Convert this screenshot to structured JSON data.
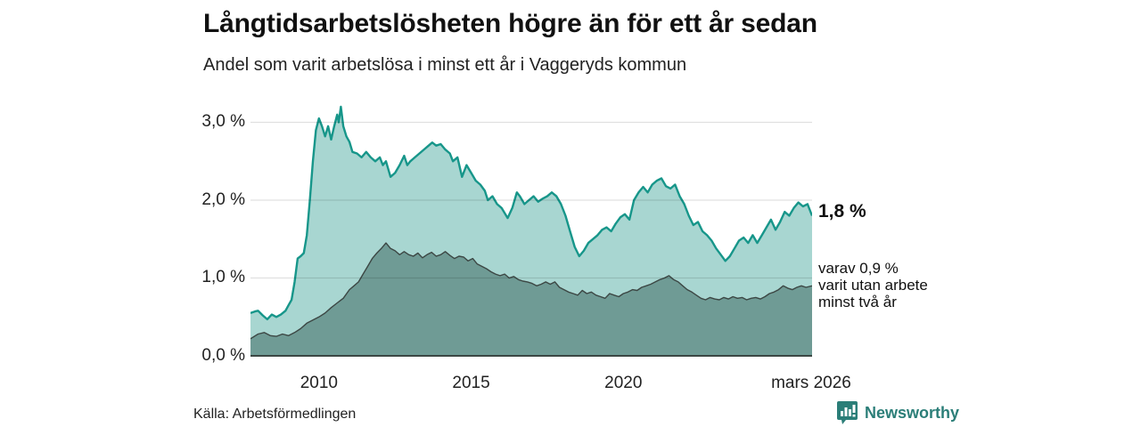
{
  "header": {
    "title": "Långtidsarbetslösheten högre än för ett år sedan",
    "subtitle": "Andel som varit arbetslösa i minst ett år i Vaggeryds kommun"
  },
  "annotations": {
    "end_value": "1,8 %",
    "secondary_lines": [
      "varav 0,9 %",
      "varit utan arbete",
      "minst två år"
    ]
  },
  "footer": {
    "source": "Källa: Arbetsförmedlingen",
    "brand": "Newsworthy"
  },
  "colors": {
    "series1_line": "#17968a",
    "series1_fill": "#a8d6d1",
    "series2_line": "#3c4744",
    "series2_fill": "#6f9b95",
    "gridline": "rgba(0,0,0,0.12)",
    "baseline": "#3c4744",
    "brand_teal": "#2b7e78"
  },
  "chart_data": {
    "type": "area",
    "title": "Långtidsarbetslösheten högre än för ett år sedan",
    "subtitle": "Andel som varit arbetslösa i minst ett år i Vaggeryds kommun",
    "unit": "%",
    "grid": true,
    "x_axis": {
      "range": [
        2007.75,
        2026.2
      ],
      "ticks": [
        {
          "label": "2010",
          "year": 2010
        },
        {
          "label": "2015",
          "year": 2015
        },
        {
          "label": "2020",
          "year": 2020
        },
        {
          "label": "mars 2026",
          "year": 2026.17
        }
      ]
    },
    "y_axis": {
      "range": [
        0,
        3.32
      ],
      "ticks": [
        {
          "label": "3,0 %",
          "value": 3
        },
        {
          "label": "2,0 %",
          "value": 2
        },
        {
          "label": "1,0 %",
          "value": 1
        },
        {
          "label": "0,0 %",
          "value": 0
        }
      ]
    },
    "series": [
      {
        "name": "Andel arbetslösa minst ett år",
        "end_value": 1.8,
        "end_label": "1,8 %",
        "points": [
          [
            2007.75,
            0.55
          ],
          [
            2007.9,
            0.57
          ],
          [
            2008.0,
            0.58
          ],
          [
            2008.15,
            0.52
          ],
          [
            2008.3,
            0.47
          ],
          [
            2008.45,
            0.53
          ],
          [
            2008.6,
            0.5
          ],
          [
            2008.75,
            0.53
          ],
          [
            2008.9,
            0.58
          ],
          [
            2009.0,
            0.65
          ],
          [
            2009.1,
            0.72
          ],
          [
            2009.2,
            0.95
          ],
          [
            2009.3,
            1.25
          ],
          [
            2009.4,
            1.28
          ],
          [
            2009.5,
            1.32
          ],
          [
            2009.6,
            1.55
          ],
          [
            2009.7,
            2.0
          ],
          [
            2009.8,
            2.5
          ],
          [
            2009.9,
            2.9
          ],
          [
            2010.0,
            3.05
          ],
          [
            2010.1,
            2.95
          ],
          [
            2010.2,
            2.82
          ],
          [
            2010.3,
            2.95
          ],
          [
            2010.4,
            2.78
          ],
          [
            2010.5,
            2.95
          ],
          [
            2010.6,
            3.1
          ],
          [
            2010.65,
            3.0
          ],
          [
            2010.72,
            3.2
          ],
          [
            2010.8,
            2.95
          ],
          [
            2010.9,
            2.82
          ],
          [
            2011.0,
            2.75
          ],
          [
            2011.1,
            2.62
          ],
          [
            2011.25,
            2.6
          ],
          [
            2011.4,
            2.55
          ],
          [
            2011.55,
            2.62
          ],
          [
            2011.7,
            2.55
          ],
          [
            2011.85,
            2.5
          ],
          [
            2012.0,
            2.55
          ],
          [
            2012.1,
            2.45
          ],
          [
            2012.2,
            2.5
          ],
          [
            2012.35,
            2.3
          ],
          [
            2012.5,
            2.35
          ],
          [
            2012.65,
            2.45
          ],
          [
            2012.8,
            2.57
          ],
          [
            2012.9,
            2.45
          ],
          [
            2013.0,
            2.5
          ],
          [
            2013.15,
            2.55
          ],
          [
            2013.3,
            2.6
          ],
          [
            2013.45,
            2.65
          ],
          [
            2013.6,
            2.7
          ],
          [
            2013.72,
            2.74
          ],
          [
            2013.85,
            2.7
          ],
          [
            2014.0,
            2.72
          ],
          [
            2014.15,
            2.65
          ],
          [
            2014.3,
            2.6
          ],
          [
            2014.4,
            2.5
          ],
          [
            2014.55,
            2.55
          ],
          [
            2014.7,
            2.3
          ],
          [
            2014.85,
            2.45
          ],
          [
            2015.0,
            2.35
          ],
          [
            2015.15,
            2.25
          ],
          [
            2015.3,
            2.2
          ],
          [
            2015.45,
            2.12
          ],
          [
            2015.55,
            2.0
          ],
          [
            2015.7,
            2.05
          ],
          [
            2015.85,
            1.95
          ],
          [
            2016.0,
            1.9
          ],
          [
            2016.2,
            1.77
          ],
          [
            2016.35,
            1.9
          ],
          [
            2016.5,
            2.1
          ],
          [
            2016.6,
            2.05
          ],
          [
            2016.75,
            1.95
          ],
          [
            2016.9,
            2.0
          ],
          [
            2017.05,
            2.05
          ],
          [
            2017.2,
            1.98
          ],
          [
            2017.35,
            2.02
          ],
          [
            2017.5,
            2.05
          ],
          [
            2017.65,
            2.1
          ],
          [
            2017.8,
            2.05
          ],
          [
            2017.95,
            1.95
          ],
          [
            2018.1,
            1.8
          ],
          [
            2018.25,
            1.6
          ],
          [
            2018.4,
            1.4
          ],
          [
            2018.55,
            1.28
          ],
          [
            2018.7,
            1.35
          ],
          [
            2018.85,
            1.45
          ],
          [
            2019.0,
            1.5
          ],
          [
            2019.15,
            1.55
          ],
          [
            2019.3,
            1.62
          ],
          [
            2019.45,
            1.65
          ],
          [
            2019.6,
            1.6
          ],
          [
            2019.75,
            1.7
          ],
          [
            2019.9,
            1.78
          ],
          [
            2020.05,
            1.82
          ],
          [
            2020.2,
            1.75
          ],
          [
            2020.35,
            2.0
          ],
          [
            2020.5,
            2.1
          ],
          [
            2020.65,
            2.17
          ],
          [
            2020.8,
            2.1
          ],
          [
            2020.95,
            2.2
          ],
          [
            2021.1,
            2.25
          ],
          [
            2021.25,
            2.28
          ],
          [
            2021.4,
            2.18
          ],
          [
            2021.55,
            2.15
          ],
          [
            2021.7,
            2.2
          ],
          [
            2021.85,
            2.05
          ],
          [
            2022.0,
            1.95
          ],
          [
            2022.15,
            1.8
          ],
          [
            2022.3,
            1.68
          ],
          [
            2022.45,
            1.72
          ],
          [
            2022.6,
            1.6
          ],
          [
            2022.75,
            1.55
          ],
          [
            2022.9,
            1.48
          ],
          [
            2023.05,
            1.38
          ],
          [
            2023.2,
            1.3
          ],
          [
            2023.35,
            1.22
          ],
          [
            2023.5,
            1.28
          ],
          [
            2023.65,
            1.38
          ],
          [
            2023.8,
            1.48
          ],
          [
            2023.95,
            1.52
          ],
          [
            2024.1,
            1.45
          ],
          [
            2024.25,
            1.55
          ],
          [
            2024.4,
            1.45
          ],
          [
            2024.55,
            1.55
          ],
          [
            2024.7,
            1.65
          ],
          [
            2024.85,
            1.75
          ],
          [
            2025.0,
            1.62
          ],
          [
            2025.15,
            1.72
          ],
          [
            2025.3,
            1.85
          ],
          [
            2025.45,
            1.8
          ],
          [
            2025.6,
            1.9
          ],
          [
            2025.75,
            1.97
          ],
          [
            2025.9,
            1.92
          ],
          [
            2026.05,
            1.95
          ],
          [
            2026.2,
            1.8
          ]
        ]
      },
      {
        "name": "varav utan arbete minst två år",
        "end_value": 0.9,
        "end_label": "varav 0,9 % varit utan arbete minst två år",
        "points": [
          [
            2007.75,
            0.22
          ],
          [
            2008.0,
            0.28
          ],
          [
            2008.2,
            0.3
          ],
          [
            2008.4,
            0.26
          ],
          [
            2008.6,
            0.25
          ],
          [
            2008.8,
            0.28
          ],
          [
            2009.0,
            0.26
          ],
          [
            2009.2,
            0.3
          ],
          [
            2009.4,
            0.35
          ],
          [
            2009.6,
            0.42
          ],
          [
            2009.8,
            0.46
          ],
          [
            2010.0,
            0.5
          ],
          [
            2010.2,
            0.55
          ],
          [
            2010.4,
            0.62
          ],
          [
            2010.6,
            0.68
          ],
          [
            2010.8,
            0.74
          ],
          [
            2011.0,
            0.85
          ],
          [
            2011.15,
            0.9
          ],
          [
            2011.3,
            0.95
          ],
          [
            2011.45,
            1.05
          ],
          [
            2011.6,
            1.15
          ],
          [
            2011.75,
            1.25
          ],
          [
            2011.9,
            1.32
          ],
          [
            2012.05,
            1.38
          ],
          [
            2012.2,
            1.45
          ],
          [
            2012.35,
            1.38
          ],
          [
            2012.5,
            1.35
          ],
          [
            2012.65,
            1.3
          ],
          [
            2012.8,
            1.34
          ],
          [
            2012.95,
            1.3
          ],
          [
            2013.1,
            1.28
          ],
          [
            2013.25,
            1.32
          ],
          [
            2013.4,
            1.26
          ],
          [
            2013.55,
            1.3
          ],
          [
            2013.7,
            1.33
          ],
          [
            2013.85,
            1.28
          ],
          [
            2014.0,
            1.3
          ],
          [
            2014.15,
            1.34
          ],
          [
            2014.3,
            1.29
          ],
          [
            2014.45,
            1.25
          ],
          [
            2014.6,
            1.28
          ],
          [
            2014.75,
            1.27
          ],
          [
            2014.9,
            1.22
          ],
          [
            2015.05,
            1.25
          ],
          [
            2015.2,
            1.18
          ],
          [
            2015.35,
            1.15
          ],
          [
            2015.5,
            1.12
          ],
          [
            2015.65,
            1.08
          ],
          [
            2015.8,
            1.05
          ],
          [
            2015.95,
            1.03
          ],
          [
            2016.1,
            1.05
          ],
          [
            2016.25,
            1.0
          ],
          [
            2016.4,
            1.02
          ],
          [
            2016.55,
            0.98
          ],
          [
            2016.7,
            0.96
          ],
          [
            2016.85,
            0.95
          ],
          [
            2017.0,
            0.93
          ],
          [
            2017.15,
            0.9
          ],
          [
            2017.3,
            0.92
          ],
          [
            2017.45,
            0.95
          ],
          [
            2017.6,
            0.92
          ],
          [
            2017.75,
            0.95
          ],
          [
            2017.9,
            0.88
          ],
          [
            2018.05,
            0.85
          ],
          [
            2018.2,
            0.82
          ],
          [
            2018.35,
            0.8
          ],
          [
            2018.5,
            0.78
          ],
          [
            2018.65,
            0.84
          ],
          [
            2018.8,
            0.8
          ],
          [
            2018.95,
            0.82
          ],
          [
            2019.1,
            0.78
          ],
          [
            2019.25,
            0.76
          ],
          [
            2019.4,
            0.74
          ],
          [
            2019.55,
            0.8
          ],
          [
            2019.7,
            0.78
          ],
          [
            2019.85,
            0.76
          ],
          [
            2020.0,
            0.8
          ],
          [
            2020.15,
            0.82
          ],
          [
            2020.3,
            0.85
          ],
          [
            2020.45,
            0.84
          ],
          [
            2020.6,
            0.88
          ],
          [
            2020.75,
            0.9
          ],
          [
            2020.9,
            0.92
          ],
          [
            2021.05,
            0.95
          ],
          [
            2021.2,
            0.98
          ],
          [
            2021.35,
            1.0
          ],
          [
            2021.5,
            1.03
          ],
          [
            2021.65,
            0.98
          ],
          [
            2021.8,
            0.95
          ],
          [
            2021.95,
            0.9
          ],
          [
            2022.1,
            0.85
          ],
          [
            2022.25,
            0.82
          ],
          [
            2022.4,
            0.78
          ],
          [
            2022.55,
            0.74
          ],
          [
            2022.7,
            0.72
          ],
          [
            2022.85,
            0.75
          ],
          [
            2023.0,
            0.73
          ],
          [
            2023.15,
            0.72
          ],
          [
            2023.3,
            0.75
          ],
          [
            2023.45,
            0.73
          ],
          [
            2023.6,
            0.76
          ],
          [
            2023.75,
            0.74
          ],
          [
            2023.9,
            0.75
          ],
          [
            2024.05,
            0.72
          ],
          [
            2024.2,
            0.74
          ],
          [
            2024.35,
            0.75
          ],
          [
            2024.5,
            0.73
          ],
          [
            2024.65,
            0.76
          ],
          [
            2024.8,
            0.8
          ],
          [
            2024.95,
            0.82
          ],
          [
            2025.1,
            0.85
          ],
          [
            2025.25,
            0.9
          ],
          [
            2025.4,
            0.87
          ],
          [
            2025.55,
            0.85
          ],
          [
            2025.7,
            0.88
          ],
          [
            2025.85,
            0.9
          ],
          [
            2026.0,
            0.88
          ],
          [
            2026.2,
            0.9
          ]
        ]
      }
    ]
  }
}
